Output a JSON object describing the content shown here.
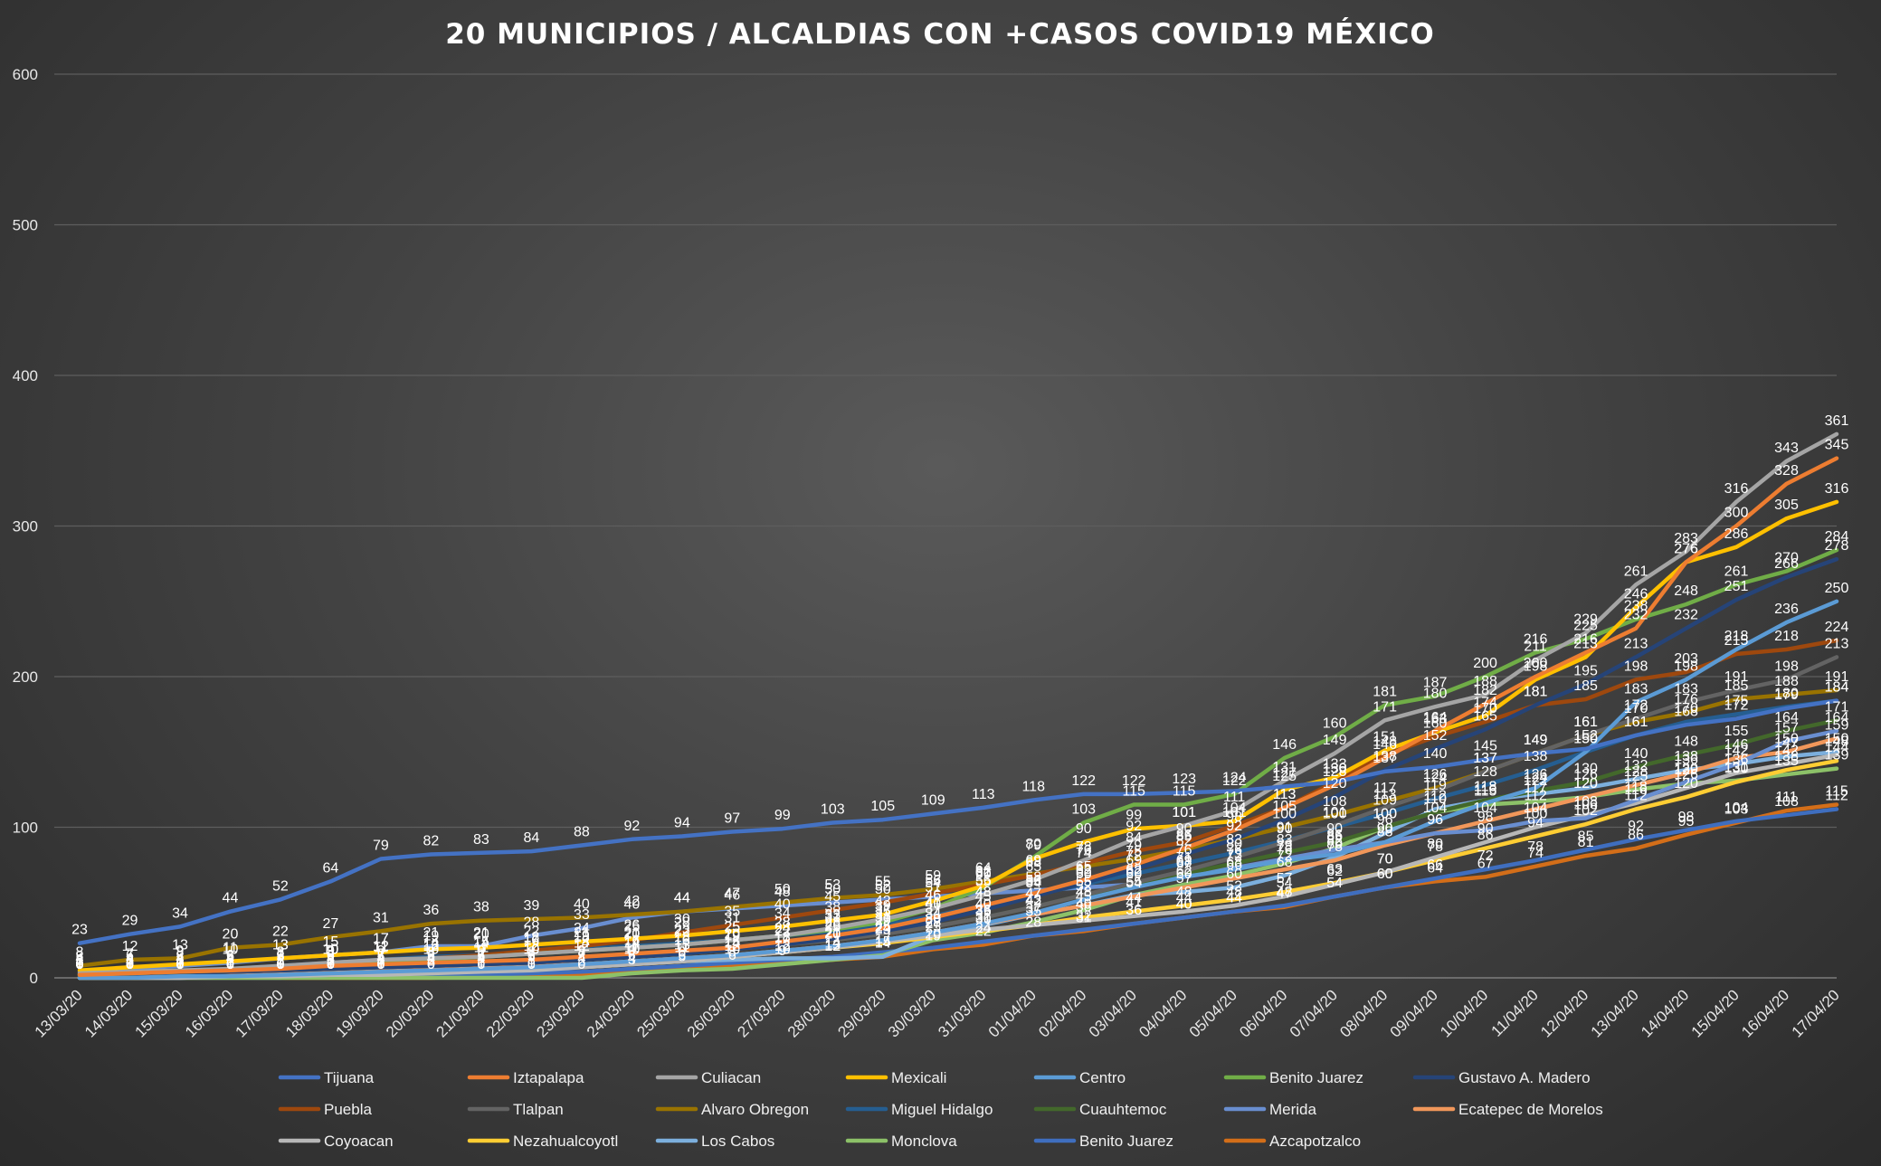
{
  "chart_data": {
    "type": "line",
    "title": "20 MUNICIPIOS / ALCALDIAS CON +CASOS COVID19 MÉXICO",
    "xlabel": "",
    "ylabel": "",
    "ylim": [
      0,
      600
    ],
    "yticks": [
      0,
      100,
      200,
      300,
      400,
      500,
      600
    ],
    "grid": true,
    "legend_position": "bottom",
    "categories": [
      "13/03/20",
      "14/03/20",
      "15/03/20",
      "16/03/20",
      "17/03/20",
      "18/03/20",
      "19/03/20",
      "20/03/20",
      "21/03/20",
      "22/03/20",
      "23/03/20",
      "24/03/20",
      "25/03/20",
      "26/03/20",
      "27/03/20",
      "28/03/20",
      "29/03/20",
      "30/03/20",
      "31/03/20",
      "01/04/20",
      "02/04/20",
      "03/04/20",
      "04/04/20",
      "05/04/20",
      "06/04/20",
      "07/04/20",
      "08/04/20",
      "09/04/20",
      "10/04/20",
      "11/04/20",
      "12/04/20",
      "13/04/20",
      "14/04/20",
      "15/04/20",
      "16/04/20",
      "17/04/20"
    ],
    "series": [
      {
        "name": "Tijuana",
        "color": "#4472c4",
        "values": [
          23,
          29,
          34,
          44,
          52,
          64,
          79,
          82,
          83,
          84,
          88,
          92,
          94,
          97,
          99,
          103,
          105,
          109,
          113,
          118,
          122,
          122,
          123,
          124,
          127,
          130,
          137,
          140,
          145,
          149,
          152,
          161,
          168,
          172,
          179,
          184
        ]
      },
      {
        "name": "Iztapalapa",
        "color": "#ed7d31",
        "values": [
          2,
          3,
          4,
          5,
          6,
          8,
          9,
          10,
          11,
          12,
          14,
          16,
          18,
          20,
          24,
          28,
          33,
          40,
          48,
          56,
          65,
          75,
          86,
          98,
          113,
          128,
          146,
          164,
          182,
          200,
          216,
          232,
          276,
          300,
          328,
          345
        ]
      },
      {
        "name": "Culiacan",
        "color": "#a5a5a5",
        "values": [
          3,
          4,
          5,
          6,
          8,
          10,
          12,
          13,
          14,
          16,
          18,
          20,
          22,
          25,
          28,
          33,
          39,
          46,
          55,
          65,
          78,
          92,
          101,
          111,
          131,
          149,
          171,
          180,
          188,
          211,
          229,
          261,
          283,
          316,
          343,
          361
        ]
      },
      {
        "name": "Mexicali",
        "color": "#ffc000",
        "values": [
          5,
          7,
          9,
          11,
          13,
          15,
          17,
          19,
          20,
          22,
          24,
          26,
          28,
          31,
          34,
          38,
          42,
          51,
          61,
          79,
          90,
          99,
          101,
          104,
          125,
          133,
          151,
          163,
          174,
          198,
          213,
          246,
          276,
          286,
          305,
          316
        ]
      },
      {
        "name": "Centro",
        "color": "#5b9bd5",
        "values": [
          0,
          0,
          1,
          1,
          2,
          3,
          4,
          5,
          6,
          7,
          9,
          11,
          13,
          15,
          18,
          21,
          25,
          30,
          36,
          43,
          52,
          60,
          67,
          72,
          78,
          82,
          90,
          104,
          116,
          126,
          150,
          183,
          198,
          218,
          236,
          250
        ]
      },
      {
        "name": "Benito Juarez",
        "color": "#70ad47",
        "values": [
          2,
          3,
          4,
          5,
          7,
          9,
          11,
          12,
          14,
          16,
          18,
          20,
          22,
          25,
          28,
          32,
          37,
          46,
          60,
          80,
          103,
          115,
          115,
          122,
          146,
          160,
          181,
          187,
          200,
          216,
          225,
          238,
          248,
          261,
          270,
          284
        ]
      },
      {
        "name": "Gustavo A. Madero",
        "color": "#264478",
        "values": [
          1,
          2,
          3,
          4,
          5,
          6,
          7,
          8,
          9,
          10,
          12,
          14,
          16,
          19,
          22,
          26,
          31,
          37,
          45,
          54,
          63,
          72,
          82,
          92,
          105,
          120,
          138,
          152,
          165,
          181,
          195,
          213,
          232,
          251,
          266,
          278
        ]
      },
      {
        "name": "Puebla",
        "color": "#9e480e",
        "values": [
          2,
          3,
          4,
          5,
          7,
          9,
          11,
          13,
          15,
          18,
          21,
          25,
          30,
          35,
          40,
          45,
          50,
          56,
          62,
          68,
          76,
          84,
          90,
          101,
          113,
          130,
          148,
          160,
          170,
          181,
          185,
          198,
          203,
          215,
          218,
          224
        ]
      },
      {
        "name": "Tlalpan",
        "color": "#636363",
        "values": [
          1,
          2,
          3,
          4,
          5,
          6,
          7,
          8,
          9,
          10,
          12,
          14,
          16,
          19,
          22,
          25,
          29,
          34,
          40,
          47,
          55,
          63,
          71,
          80,
          90,
          101,
          113,
          124,
          137,
          149,
          161,
          172,
          183,
          191,
          198,
          213
        ]
      },
      {
        "name": "Alvaro Obregon",
        "color": "#997300",
        "values": [
          8,
          12,
          13,
          20,
          22,
          27,
          31,
          36,
          38,
          39,
          40,
          42,
          44,
          47,
          50,
          53,
          55,
          59,
          64,
          69,
          74,
          79,
          85,
          92,
          100,
          108,
          117,
          126,
          137,
          149,
          161,
          170,
          176,
          185,
          188,
          191
        ]
      },
      {
        "name": "Miguel Hidalgo",
        "color": "#255e91",
        "values": [
          2,
          3,
          4,
          6,
          8,
          10,
          12,
          14,
          15,
          17,
          19,
          21,
          23,
          25,
          28,
          31,
          35,
          41,
          48,
          55,
          62,
          69,
          76,
          83,
          91,
          100,
          109,
          119,
          128,
          138,
          150,
          161,
          170,
          175,
          180,
          184
        ]
      },
      {
        "name": "Cuauhtemoc",
        "color": "#43682b",
        "values": [
          1,
          2,
          3,
          4,
          5,
          6,
          7,
          8,
          9,
          10,
          12,
          14,
          16,
          19,
          22,
          25,
          29,
          34,
          40,
          47,
          55,
          62,
          69,
          76,
          83,
          90,
          100,
          110,
          118,
          124,
          130,
          140,
          148,
          155,
          164,
          171
        ]
      },
      {
        "name": "Merida",
        "color": "#698ed0",
        "values": [
          4,
          6,
          8,
          10,
          13,
          15,
          17,
          21,
          21,
          28,
          33,
          40,
          44,
          46,
          48,
          50,
          52,
          54,
          56,
          58,
          60,
          62,
          68,
          73,
          79,
          85,
          90,
          96,
          98,
          104,
          106,
          118,
          130,
          142,
          157,
          164
        ]
      },
      {
        "name": "Ecatepec de Morelos",
        "color": "#f1975a",
        "values": [
          1,
          1,
          2,
          2,
          3,
          4,
          5,
          6,
          7,
          8,
          9,
          11,
          13,
          15,
          18,
          21,
          25,
          30,
          36,
          42,
          48,
          54,
          60,
          66,
          72,
          78,
          88,
          96,
          104,
          112,
          120,
          128,
          136,
          146,
          150,
          159
        ]
      },
      {
        "name": "Coyoacan",
        "color": "#b7b7b7",
        "values": [
          0,
          0,
          0,
          1,
          1,
          2,
          2,
          3,
          4,
          5,
          7,
          9,
          11,
          14,
          17,
          20,
          24,
          28,
          32,
          35,
          38,
          41,
          44,
          48,
          54,
          62,
          70,
          80,
          90,
          100,
          108,
          116,
          126,
          136,
          142,
          148
        ]
      },
      {
        "name": "Nezahualcoyotl",
        "color": "#ffcd33",
        "values": [
          0,
          0,
          1,
          1,
          2,
          2,
          3,
          4,
          5,
          6,
          7,
          9,
          11,
          14,
          17,
          20,
          23,
          27,
          31,
          35,
          40,
          44,
          48,
          52,
          57,
          63,
          70,
          78,
          86,
          94,
          102,
          112,
          120,
          130,
          138,
          144
        ]
      },
      {
        "name": "Los Cabos",
        "color": "#7cafdd",
        "values": [
          0,
          0,
          0,
          1,
          1,
          2,
          3,
          4,
          5,
          6,
          8,
          10,
          11,
          12,
          13,
          13,
          14,
          28,
          35,
          42,
          48,
          55,
          57,
          60,
          68,
          80,
          96,
          112,
          118,
          122,
          126,
          132,
          138,
          142,
          147,
          150
        ]
      },
      {
        "name": "Monclova",
        "color": "#8cc168",
        "values": [
          0,
          0,
          0,
          0,
          0,
          0,
          0,
          0,
          0,
          0,
          0,
          3,
          5,
          6,
          9,
          12,
          15,
          25,
          30,
          37,
          45,
          55,
          62,
          68,
          76,
          86,
          100,
          110,
          115,
          117,
          120,
          125,
          129,
          131,
          135,
          139
        ]
      },
      {
        "name": "Benito Juarez",
        "color": "#3f6ebf",
        "values": [
          0,
          0,
          0,
          0,
          0,
          1,
          1,
          2,
          2,
          3,
          4,
          6,
          8,
          10,
          12,
          14,
          17,
          20,
          24,
          28,
          32,
          36,
          40,
          44,
          48,
          54,
          60,
          66,
          72,
          78,
          85,
          92,
          98,
          104,
          108,
          112
        ]
      },
      {
        "name": "Azcapotzalco",
        "color": "#d36e19",
        "values": [
          0,
          0,
          0,
          0,
          0,
          0,
          0,
          0,
          1,
          1,
          2,
          4,
          6,
          8,
          10,
          12,
          14,
          19,
          22,
          28,
          31,
          36,
          40,
          44,
          47,
          54,
          60,
          64,
          67,
          74,
          81,
          86,
          95,
          103,
          111,
          115
        ]
      }
    ],
    "data_labels": {
      "Tijuana": true
    }
  }
}
